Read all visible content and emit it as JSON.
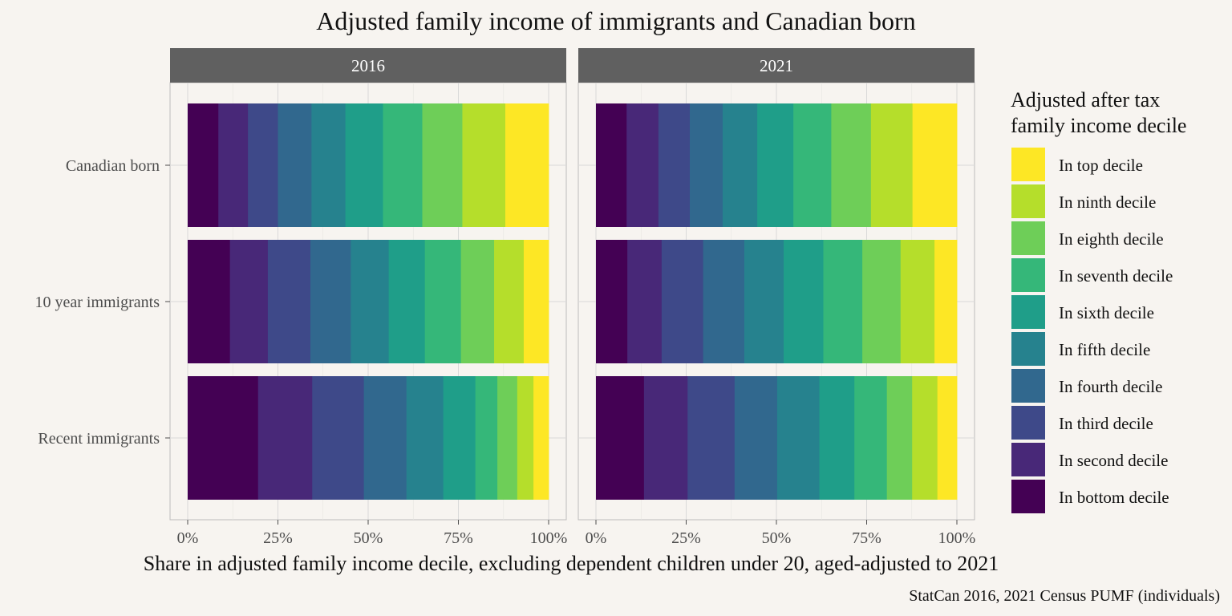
{
  "chart_data": {
    "type": "bar",
    "orientation": "horizontal",
    "stacked": "percent",
    "title": "Adjusted family income of immigrants and Canadian born",
    "xlabel": "Share in adjusted family income decile, excluding dependent children under 20, aged-adjusted to 2021",
    "caption": "StatCan 2016, 2021 Census PUMF (individuals)",
    "xlim": [
      0,
      1
    ],
    "x_ticks": [
      "0%",
      "25%",
      "50%",
      "75%",
      "100%"
    ],
    "categories": [
      "Canadian born",
      "10 year immigrants",
      "Recent immigrants"
    ],
    "legend": {
      "title_lines": [
        "Adjusted after tax",
        "family income decile"
      ],
      "position": "right",
      "entries": [
        "In top decile",
        "In ninth decile",
        "In eighth decile",
        "In seventh decile",
        "In sixth decile",
        "In fifth decile",
        "In fourth decile",
        "In third decile",
        "In second decile",
        "In bottom decile"
      ]
    },
    "series_colors": [
      "#440154",
      "#482878",
      "#3e4989",
      "#31688e",
      "#26828e",
      "#1f9e89",
      "#35b779",
      "#6ece58",
      "#b5de2b",
      "#fde725"
    ],
    "series_names": [
      "In bottom decile",
      "In second decile",
      "In third decile",
      "In fourth decile",
      "In fifth decile",
      "In sixth decile",
      "In seventh decile",
      "In eighth decile",
      "In ninth decile",
      "In top decile"
    ],
    "facets": [
      {
        "label": "2016",
        "shares": [
          [
            0.085,
            0.082,
            0.083,
            0.093,
            0.094,
            0.104,
            0.109,
            0.111,
            0.119,
            0.12
          ],
          [
            0.117,
            0.105,
            0.118,
            0.112,
            0.105,
            0.1,
            0.1,
            0.092,
            0.082,
            0.069
          ],
          [
            0.195,
            0.15,
            0.143,
            0.118,
            0.102,
            0.089,
            0.061,
            0.055,
            0.045,
            0.042
          ]
        ]
      },
      {
        "label": "2021",
        "shares": [
          [
            0.085,
            0.088,
            0.087,
            0.091,
            0.096,
            0.1,
            0.105,
            0.11,
            0.115,
            0.123
          ],
          [
            0.087,
            0.095,
            0.115,
            0.114,
            0.109,
            0.11,
            0.108,
            0.106,
            0.094,
            0.062
          ],
          [
            0.133,
            0.121,
            0.13,
            0.118,
            0.117,
            0.097,
            0.09,
            0.07,
            0.07,
            0.054
          ]
        ]
      }
    ]
  }
}
